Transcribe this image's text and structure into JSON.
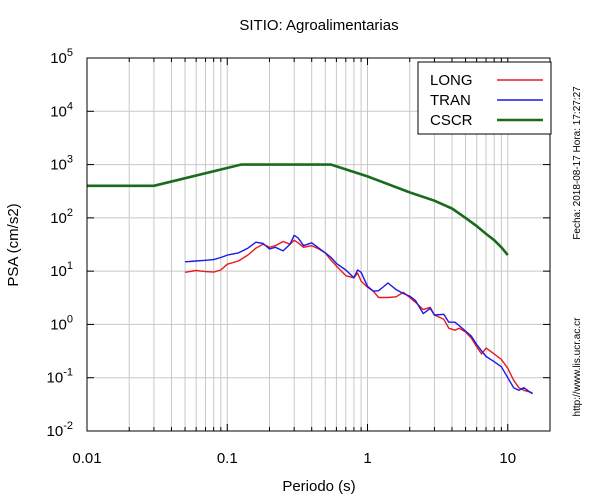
{
  "chart_data": {
    "type": "line",
    "title": "SITIO: Agroalimentarias",
    "xlabel": "Periodo (s)",
    "ylabel": "PSA (cm/s2)",
    "x_scale": "log",
    "y_scale": "log",
    "xlim": [
      0.01,
      20
    ],
    "ylim": [
      0.01,
      100000
    ],
    "grid": true,
    "legend_position": "top-right",
    "x_ticks": [
      {
        "value": 0.01,
        "label": "0.01"
      },
      {
        "value": 0.1,
        "label": "0.1"
      },
      {
        "value": 1,
        "label": "1"
      },
      {
        "value": 10,
        "label": "10"
      }
    ],
    "y_ticks": [
      {
        "value": 0.01,
        "base": "10",
        "exp": "-2"
      },
      {
        "value": 0.1,
        "base": "10",
        "exp": "-1"
      },
      {
        "value": 1,
        "base": "10",
        "exp": "0"
      },
      {
        "value": 10,
        "base": "10",
        "exp": "1"
      },
      {
        "value": 100,
        "base": "10",
        "exp": "2"
      },
      {
        "value": 1000,
        "base": "10",
        "exp": "3"
      },
      {
        "value": 10000,
        "base": "10",
        "exp": "4"
      },
      {
        "value": 100000,
        "base": "10",
        "exp": "5"
      }
    ],
    "series": [
      {
        "name": "LONG",
        "color": "#e8191c",
        "points": [
          [
            0.05,
            9.5
          ],
          [
            0.06,
            10.3
          ],
          [
            0.07,
            9.8
          ],
          [
            0.08,
            9.6
          ],
          [
            0.09,
            10.5
          ],
          [
            0.1,
            13.5
          ],
          [
            0.12,
            15.5
          ],
          [
            0.14,
            20
          ],
          [
            0.16,
            27
          ],
          [
            0.18,
            32
          ],
          [
            0.2,
            28
          ],
          [
            0.22,
            30
          ],
          [
            0.25,
            36
          ],
          [
            0.28,
            32
          ],
          [
            0.3,
            38
          ],
          [
            0.32,
            34
          ],
          [
            0.35,
            28
          ],
          [
            0.4,
            30
          ],
          [
            0.45,
            26
          ],
          [
            0.5,
            22
          ],
          [
            0.55,
            16
          ],
          [
            0.6,
            12.5
          ],
          [
            0.7,
            8.2
          ],
          [
            0.8,
            7.5
          ],
          [
            0.85,
            9.2
          ],
          [
            0.9,
            6.5
          ],
          [
            1.0,
            5.0
          ],
          [
            1.1,
            4.2
          ],
          [
            1.2,
            3.2
          ],
          [
            1.4,
            3.2
          ],
          [
            1.6,
            3.3
          ],
          [
            1.8,
            4.0
          ],
          [
            2.0,
            3.2
          ],
          [
            2.2,
            2.6
          ],
          [
            2.5,
            1.9
          ],
          [
            2.8,
            2.1
          ],
          [
            3.0,
            1.5
          ],
          [
            3.5,
            1.25
          ],
          [
            3.8,
            0.85
          ],
          [
            4.2,
            0.78
          ],
          [
            4.5,
            0.85
          ],
          [
            5.0,
            0.72
          ],
          [
            5.5,
            0.55
          ],
          [
            6.0,
            0.38
          ],
          [
            6.5,
            0.28
          ],
          [
            7.0,
            0.36
          ],
          [
            8.0,
            0.28
          ],
          [
            9.0,
            0.22
          ],
          [
            10.0,
            0.15
          ],
          [
            11.0,
            0.09
          ],
          [
            12.0,
            0.065
          ],
          [
            13.0,
            0.058
          ],
          [
            15.0,
            0.052
          ]
        ]
      },
      {
        "name": "TRAN",
        "color": "#1a1ae6",
        "points": [
          [
            0.05,
            15
          ],
          [
            0.06,
            15.5
          ],
          [
            0.07,
            16
          ],
          [
            0.08,
            16.5
          ],
          [
            0.09,
            18
          ],
          [
            0.1,
            20
          ],
          [
            0.12,
            22
          ],
          [
            0.14,
            27
          ],
          [
            0.16,
            35
          ],
          [
            0.18,
            33
          ],
          [
            0.2,
            26
          ],
          [
            0.22,
            28
          ],
          [
            0.25,
            24
          ],
          [
            0.28,
            32
          ],
          [
            0.3,
            47
          ],
          [
            0.32,
            42
          ],
          [
            0.35,
            30
          ],
          [
            0.4,
            34
          ],
          [
            0.45,
            27
          ],
          [
            0.5,
            22
          ],
          [
            0.55,
            18
          ],
          [
            0.6,
            14
          ],
          [
            0.7,
            10.5
          ],
          [
            0.8,
            7.5
          ],
          [
            0.85,
            10.5
          ],
          [
            0.9,
            9.5
          ],
          [
            1.0,
            5.2
          ],
          [
            1.1,
            4.2
          ],
          [
            1.2,
            4.3
          ],
          [
            1.4,
            6.0
          ],
          [
            1.6,
            4.5
          ],
          [
            1.8,
            3.8
          ],
          [
            2.0,
            3.4
          ],
          [
            2.2,
            2.8
          ],
          [
            2.5,
            1.6
          ],
          [
            2.8,
            2.0
          ],
          [
            3.0,
            1.5
          ],
          [
            3.5,
            1.55
          ],
          [
            3.8,
            1.1
          ],
          [
            4.2,
            1.1
          ],
          [
            4.5,
            0.95
          ],
          [
            5.0,
            0.75
          ],
          [
            5.5,
            0.6
          ],
          [
            6.0,
            0.42
          ],
          [
            6.5,
            0.32
          ],
          [
            7.0,
            0.25
          ],
          [
            8.0,
            0.2
          ],
          [
            9.0,
            0.16
          ],
          [
            10.0,
            0.1
          ],
          [
            11.0,
            0.065
          ],
          [
            12.0,
            0.058
          ],
          [
            13.0,
            0.065
          ],
          [
            15.0,
            0.05
          ]
        ]
      },
      {
        "name": "CSCR",
        "color": "#1c6b1c",
        "points": [
          [
            0.01,
            400
          ],
          [
            0.03,
            400
          ],
          [
            0.125,
            1000
          ],
          [
            0.55,
            1000
          ],
          [
            1.0,
            600
          ],
          [
            2.0,
            300
          ],
          [
            3.0,
            210
          ],
          [
            4.0,
            150
          ],
          [
            5.0,
            100
          ],
          [
            6.0,
            70
          ],
          [
            7.0,
            50
          ],
          [
            8.0,
            38
          ],
          [
            9.0,
            28
          ],
          [
            10.0,
            20
          ]
        ]
      }
    ],
    "side_text": {
      "date": "Fecha: 2018-08-17 Hora: 17:27:27",
      "url": "http://www.lis.ucr.ac.cr"
    }
  }
}
